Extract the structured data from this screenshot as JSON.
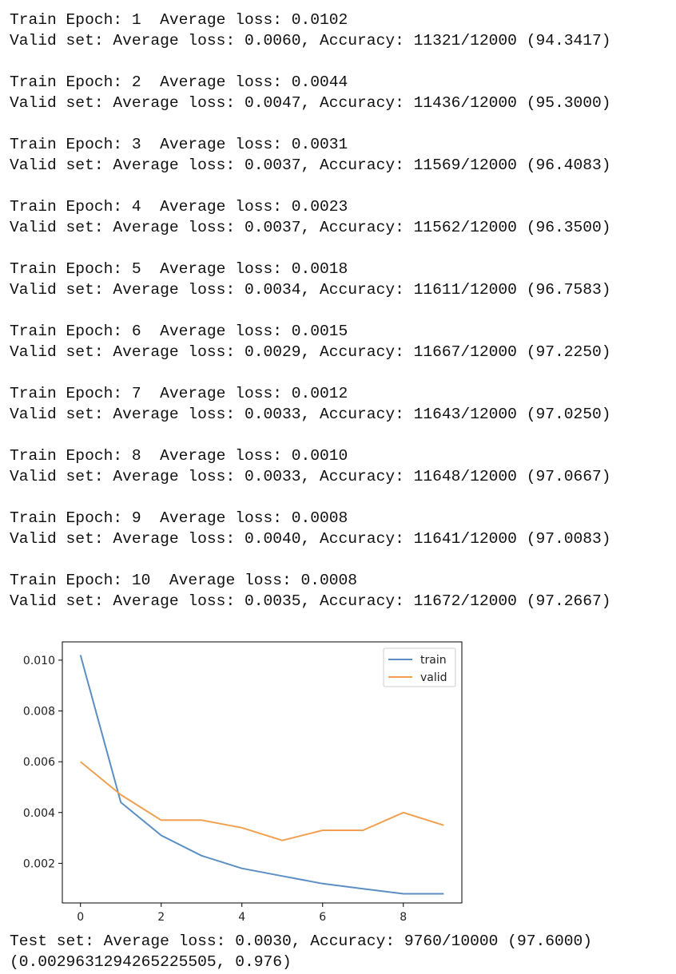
{
  "log": [
    {
      "train": "Train Epoch: 1  Average loss: 0.0102",
      "valid": "Valid set: Average loss: 0.0060, Accuracy: 11321/12000 (94.3417)"
    },
    {
      "train": "Train Epoch: 2  Average loss: 0.0044",
      "valid": "Valid set: Average loss: 0.0047, Accuracy: 11436/12000 (95.3000)"
    },
    {
      "train": "Train Epoch: 3  Average loss: 0.0031",
      "valid": "Valid set: Average loss: 0.0037, Accuracy: 11569/12000 (96.4083)"
    },
    {
      "train": "Train Epoch: 4  Average loss: 0.0023",
      "valid": "Valid set: Average loss: 0.0037, Accuracy: 11562/12000 (96.3500)"
    },
    {
      "train": "Train Epoch: 5  Average loss: 0.0018",
      "valid": "Valid set: Average loss: 0.0034, Accuracy: 11611/12000 (96.7583)"
    },
    {
      "train": "Train Epoch: 6  Average loss: 0.0015",
      "valid": "Valid set: Average loss: 0.0029, Accuracy: 11667/12000 (97.2250)"
    },
    {
      "train": "Train Epoch: 7  Average loss: 0.0012",
      "valid": "Valid set: Average loss: 0.0033, Accuracy: 11643/12000 (97.0250)"
    },
    {
      "train": "Train Epoch: 8  Average loss: 0.0010",
      "valid": "Valid set: Average loss: 0.0033, Accuracy: 11648/12000 (97.0667)"
    },
    {
      "train": "Train Epoch: 9  Average loss: 0.0008",
      "valid": "Valid set: Average loss: 0.0040, Accuracy: 11641/12000 (97.0083)"
    },
    {
      "train": "Train Epoch: 10  Average loss: 0.0008",
      "valid": "Valid set: Average loss: 0.0035, Accuracy: 11672/12000 (97.2667)"
    }
  ],
  "test_line": "Test set: Average loss: 0.0030, Accuracy: 9760/10000 (97.6000)",
  "result_line": "(0.0029631294265225505, 0.976)",
  "chart_data": {
    "type": "line",
    "title": "",
    "xlabel": "",
    "ylabel": "",
    "x": [
      0,
      1,
      2,
      3,
      4,
      5,
      6,
      7,
      8,
      9
    ],
    "series": [
      {
        "name": "train",
        "color": "#5b8fc4",
        "values": [
          0.0102,
          0.0044,
          0.0031,
          0.0023,
          0.0018,
          0.0015,
          0.0012,
          0.001,
          0.0008,
          0.0008
        ]
      },
      {
        "name": "valid",
        "color": "#f0a050",
        "values": [
          0.006,
          0.0047,
          0.0037,
          0.0037,
          0.0034,
          0.0029,
          0.0033,
          0.0033,
          0.004,
          0.0035
        ]
      }
    ],
    "xlim": [
      -0.45,
      9.45
    ],
    "ylim": [
      0.00044,
      0.01072
    ],
    "xticks": [
      "0",
      "2",
      "4",
      "6",
      "8"
    ],
    "xtick_values": [
      0,
      2,
      4,
      6,
      8
    ],
    "yticks": [
      "0.002",
      "0.004",
      "0.006",
      "0.008",
      "0.010"
    ],
    "ytick_values": [
      0.002,
      0.004,
      0.006,
      0.008,
      0.01
    ],
    "grid": false,
    "legend_position": "top-right"
  }
}
